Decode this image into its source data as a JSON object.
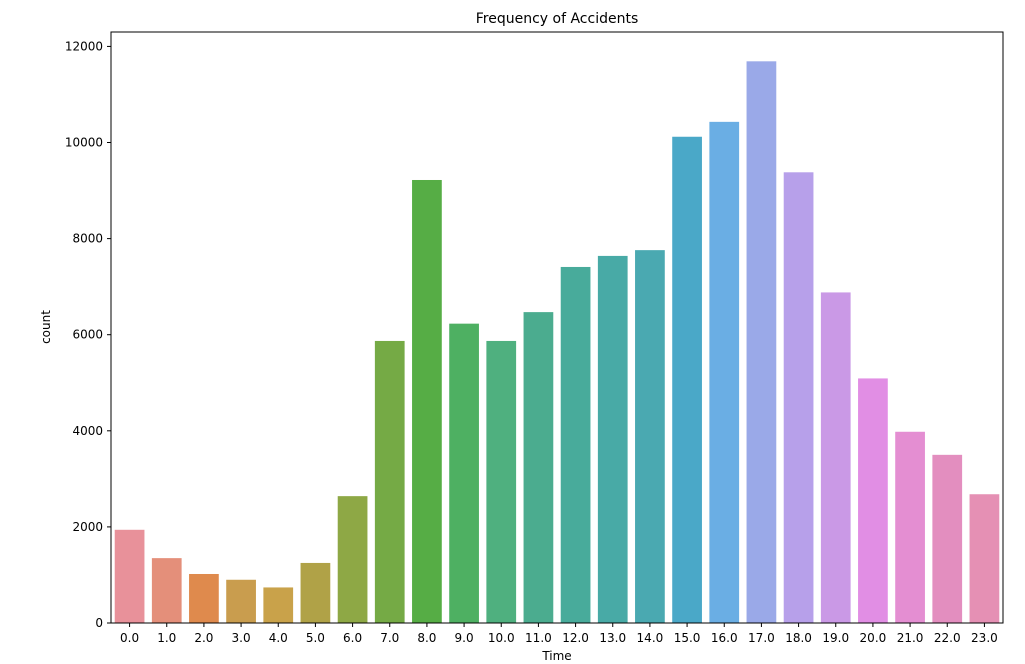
{
  "chart_data": {
    "type": "bar",
    "title": "Frequency of Accidents",
    "xlabel": "Time",
    "ylabel": "count",
    "categories": [
      "0.0",
      "1.0",
      "2.0",
      "3.0",
      "4.0",
      "5.0",
      "6.0",
      "7.0",
      "8.0",
      "9.0",
      "10.0",
      "11.0",
      "12.0",
      "13.0",
      "14.0",
      "15.0",
      "16.0",
      "17.0",
      "18.0",
      "19.0",
      "20.0",
      "21.0",
      "22.0",
      "23.0"
    ],
    "values": [
      1940,
      1350,
      1020,
      900,
      740,
      1250,
      2640,
      5870,
      9220,
      6230,
      5870,
      6470,
      7410,
      7640,
      7760,
      10120,
      10430,
      11690,
      9380,
      6880,
      5090,
      3980,
      3500,
      2680
    ],
    "colors": [
      "#e8919a",
      "#e48f7a",
      "#df8a4d",
      "#c99d4e",
      "#c9a24a",
      "#b0a247",
      "#8ea845",
      "#75aa45",
      "#56ad45",
      "#4eb062",
      "#4fb07f",
      "#4bac8f",
      "#48ab9b",
      "#48aaa6",
      "#4aa9b1",
      "#4aa8c8",
      "#6aaee4",
      "#9aa9e8",
      "#b7a0ea",
      "#ca99e6",
      "#e18ee4",
      "#e48ed2",
      "#e38ebf",
      "#e590b4"
    ],
    "ylim": [
      0,
      12300
    ],
    "yticks": [
      0,
      2000,
      4000,
      6000,
      8000,
      10000,
      12000
    ],
    "ytick_labels": [
      "0",
      "2000",
      "4000",
      "6000",
      "8000",
      "10000",
      "12000"
    ],
    "grid": false,
    "legend": "none"
  }
}
